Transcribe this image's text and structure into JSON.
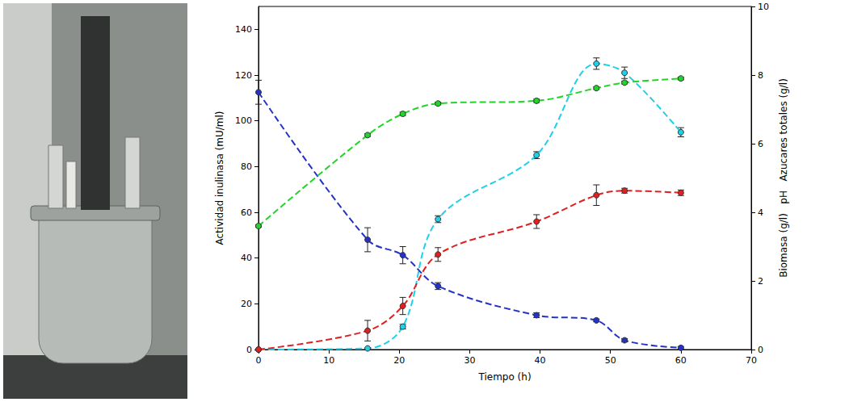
{
  "chart_data": {
    "type": "line",
    "xlabel": "Tiempo (h)",
    "ylabel": "Actividad inulinasa (mU/ml)",
    "y2label": "Biomasa (g/l)   pH   Azucares totales (g/l)",
    "x": [
      0,
      15.5,
      20.5,
      25.5,
      39.5,
      48,
      52,
      60
    ],
    "xlim": [
      0,
      70
    ],
    "xticks": [
      0,
      10,
      20,
      30,
      40,
      50,
      60,
      70
    ],
    "ylim": [
      0,
      150
    ],
    "yticks": [
      0,
      20,
      40,
      60,
      80,
      100,
      120,
      140
    ],
    "y2lim": [
      0,
      10
    ],
    "y2ticks": [
      0,
      2,
      4,
      6,
      8,
      10
    ],
    "marker": "circle",
    "line_style": "dashed",
    "grid": false,
    "series": [
      {
        "color": "#1fd0e8",
        "axis": "y",
        "values": [
          0,
          0.5,
          10,
          57,
          85,
          125,
          121,
          95
        ],
        "errors": [
          0,
          0,
          1,
          1.5,
          1.5,
          2.5,
          2.5,
          2
        ]
      },
      {
        "color": "#2432c8",
        "axis": "y2",
        "values": [
          7.5,
          3.2,
          2.75,
          1.85,
          1.0,
          0.85,
          0.27,
          0.05
        ],
        "errors": [
          0.35,
          0.35,
          0.25,
          0.1,
          0.07,
          0.04,
          0.05,
          0.04
        ]
      },
      {
        "color": "#22d42a",
        "axis": "y2",
        "values": [
          3.6,
          6.25,
          6.87,
          7.17,
          7.25,
          7.62,
          7.78,
          7.9
        ],
        "errors": [
          0.04,
          0.04,
          0.05,
          0.04,
          0.05,
          0.04,
          0.04,
          0.04
        ]
      },
      {
        "color": "#e02020",
        "axis": "y2",
        "values": [
          0,
          0.55,
          1.27,
          2.77,
          3.73,
          4.5,
          4.63,
          4.57
        ],
        "errors": [
          0,
          0.3,
          0.25,
          0.2,
          0.2,
          0.3,
          0.07,
          0.08
        ]
      }
    ]
  }
}
